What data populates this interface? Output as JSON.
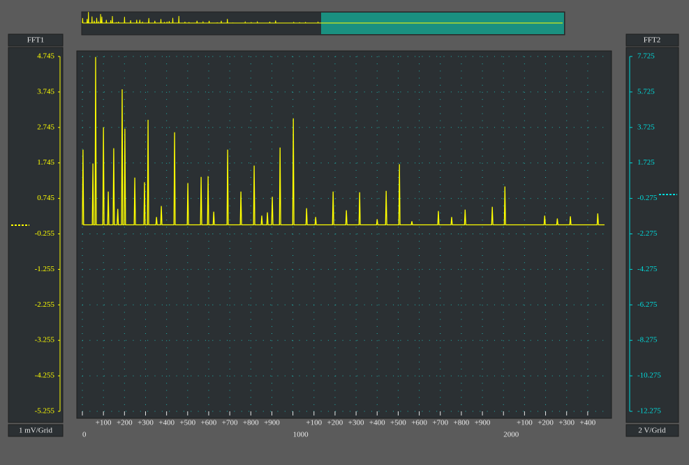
{
  "panels": {
    "left": {
      "header": "FFT1",
      "footer": "1 mV/Grid"
    },
    "right": {
      "header": "FFT2",
      "footer": "2 V/Grid"
    }
  },
  "chart_data": {
    "type": "line",
    "x": [
      0,
      3,
      6,
      47,
      50,
      53,
      60,
      63,
      66,
      97,
      100,
      103,
      120,
      123,
      126,
      146,
      149,
      152,
      165,
      168,
      171,
      186,
      189,
      192,
      199,
      202,
      205,
      246,
      249,
      252,
      292,
      295,
      298,
      309,
      312,
      315,
      349,
      352,
      355,
      372,
      375,
      378,
      435,
      438,
      441,
      498,
      501,
      504,
      561,
      564,
      567,
      594,
      597,
      600,
      621,
      624,
      627,
      687,
      690,
      693,
      750,
      753,
      756,
      813,
      816,
      819,
      849,
      852,
      855,
      876,
      879,
      882,
      899,
      902,
      905,
      936,
      939,
      942,
      999,
      1002,
      1005,
      1062,
      1065,
      1068,
      1105,
      1108,
      1111,
      1188,
      1191,
      1194,
      1251,
      1254,
      1257,
      1314,
      1317,
      1320,
      1397,
      1400,
      1403,
      1440,
      1443,
      1446,
      1503,
      1506,
      1509,
      1562,
      1565,
      1568,
      1688,
      1691,
      1694,
      1751,
      1754,
      1757,
      1815,
      1818,
      1821,
      1944,
      1947,
      1950,
      2004,
      2007,
      2010,
      2193,
      2196,
      2199,
      2253,
      2256,
      2259,
      2315,
      2318,
      2321,
      2445,
      2448,
      2451,
      2480
    ],
    "values": [
      0,
      2.12,
      0,
      0,
      1.73,
      0,
      0,
      4.73,
      0,
      0,
      2.75,
      0,
      0,
      0.94,
      0,
      0,
      2.16,
      0,
      0,
      0.45,
      0,
      0,
      3.82,
      0,
      0,
      2.71,
      0,
      0,
      1.33,
      0,
      0,
      1.2,
      0,
      0,
      2.96,
      0,
      0,
      0.22,
      0,
      0,
      0.53,
      0,
      0,
      2.61,
      0,
      0,
      1.18,
      0,
      0,
      1.35,
      0,
      0,
      1.37,
      0,
      0,
      0.37,
      0,
      0,
      2.12,
      0,
      0,
      0.94,
      0,
      0,
      1.67,
      0,
      0,
      0.26,
      0,
      0,
      0.35,
      0,
      0,
      0.79,
      0,
      0,
      2.18,
      0,
      0,
      3.0,
      0,
      0,
      0.47,
      0,
      0,
      0.22,
      0,
      0,
      0.94,
      0,
      0,
      0.41,
      0,
      0,
      0.92,
      0,
      0,
      0.16,
      0,
      0,
      0.96,
      0,
      0,
      1.71,
      0,
      0,
      0.1,
      0,
      0,
      0.39,
      0,
      0,
      0.22,
      0,
      0,
      0.43,
      0,
      0,
      0.51,
      0,
      0,
      1.08,
      0,
      0,
      0.26,
      0,
      0,
      0.18,
      0,
      0,
      0.24,
      0,
      0,
      0.32,
      0,
      0
    ],
    "color": "#ffff00",
    "xlim": [
      0,
      2480
    ],
    "xticks": [
      0,
      {
        "value": 100,
        "label": "+100"
      },
      {
        "value": 200,
        "label": "+200"
      },
      {
        "value": 300,
        "label": "+300"
      },
      {
        "value": 400,
        "label": "+400"
      },
      {
        "value": 500,
        "label": "+500"
      },
      {
        "value": 600,
        "label": "+600"
      },
      {
        "value": 700,
        "label": "+700"
      },
      {
        "value": 800,
        "label": "+800"
      },
      {
        "value": 900,
        "label": "+900"
      },
      1000,
      {
        "value": 1100,
        "label": "+100"
      },
      {
        "value": 1200,
        "label": "+200"
      },
      {
        "value": 1300,
        "label": "+300"
      },
      {
        "value": 1400,
        "label": "+400"
      },
      {
        "value": 1500,
        "label": "+500"
      },
      {
        "value": 1600,
        "label": "+600"
      },
      {
        "value": 1700,
        "label": "+700"
      },
      {
        "value": 1800,
        "label": "+800"
      },
      {
        "value": 1900,
        "label": "+900"
      },
      2000,
      {
        "value": 2100,
        "label": "+100"
      },
      {
        "value": 2200,
        "label": "+200"
      },
      {
        "value": 2300,
        "label": "+300"
      },
      {
        "value": 2400,
        "label": "+400"
      }
    ],
    "ylim": [
      -5.255,
      4.745
    ],
    "yticks": [
      4.745,
      3.745,
      2.745,
      1.745,
      0.745,
      -0.255,
      -1.255,
      -2.255,
      -3.255,
      -4.255,
      -5.255
    ],
    "y2lim": [
      -12.275,
      7.725
    ],
    "y2ticks": [
      7.725,
      5.725,
      3.725,
      1.725,
      -0.275,
      -2.275,
      -4.275,
      -6.275,
      -8.275,
      -10.275,
      -12.275
    ],
    "grid": true
  }
}
